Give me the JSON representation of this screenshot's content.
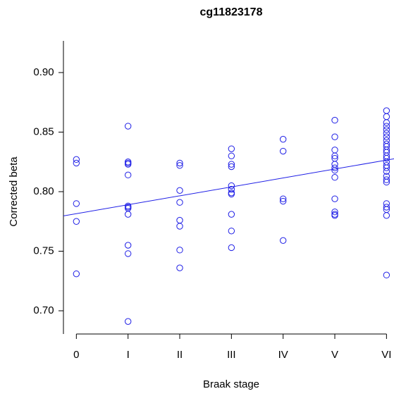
{
  "chart_data": {
    "type": "scatter",
    "title": "cg11823178",
    "x_label": "Braak stage",
    "y_label": "Corrected beta",
    "color": "#1f1fe6",
    "x": [
      0,
      0,
      0,
      0,
      0,
      1,
      1,
      1,
      1,
      1,
      1,
      1,
      1,
      1,
      1,
      1,
      1,
      2,
      2,
      2,
      2,
      2,
      2,
      2,
      2,
      3,
      3,
      3,
      3,
      3,
      3,
      3,
      3,
      3,
      3,
      3,
      4,
      4,
      4,
      4,
      4,
      5,
      5,
      5,
      5,
      5,
      5,
      5,
      5,
      5,
      5,
      5,
      5,
      5,
      6,
      6,
      6,
      6,
      6,
      6,
      6,
      6,
      6,
      6,
      6,
      6,
      6,
      6,
      6,
      6,
      6,
      6,
      6,
      6,
      6,
      6,
      6,
      6,
      6,
      6
    ],
    "y": [
      0.827,
      0.824,
      0.79,
      0.775,
      0.731,
      0.855,
      0.825,
      0.824,
      0.823,
      0.814,
      0.788,
      0.787,
      0.786,
      0.781,
      0.755,
      0.748,
      0.691,
      0.824,
      0.822,
      0.801,
      0.791,
      0.776,
      0.771,
      0.751,
      0.736,
      0.836,
      0.83,
      0.823,
      0.821,
      0.805,
      0.802,
      0.799,
      0.798,
      0.781,
      0.767,
      0.753,
      0.844,
      0.834,
      0.794,
      0.792,
      0.759,
      0.86,
      0.846,
      0.835,
      0.83,
      0.828,
      0.823,
      0.82,
      0.818,
      0.812,
      0.794,
      0.783,
      0.781,
      0.78,
      0.868,
      0.863,
      0.858,
      0.855,
      0.852,
      0.849,
      0.846,
      0.843,
      0.84,
      0.838,
      0.835,
      0.833,
      0.83,
      0.828,
      0.825,
      0.822,
      0.82,
      0.817,
      0.813,
      0.81,
      0.808,
      0.79,
      0.787,
      0.785,
      0.78,
      0.73
    ],
    "fit": {
      "intercept": 0.7815,
      "slope": 0.0075
    },
    "xlim": [
      -0.25,
      6.25
    ],
    "xticks": [
      0,
      {
        "value": 1,
        "label": "I"
      },
      {
        "value": 2,
        "label": "II"
      },
      {
        "value": 3,
        "label": "III"
      },
      {
        "value": 4,
        "label": "IV"
      },
      {
        "value": 5,
        "label": "V"
      },
      {
        "value": 6,
        "label": "VI"
      }
    ],
    "ylim": [
      0.6805,
      0.9266
    ],
    "yticks": [
      {
        "value": 0.7,
        "label": "0.70"
      },
      0.75,
      {
        "value": 0.8,
        "label": "0.80"
      },
      0.85,
      {
        "value": 0.9,
        "label": "0.90"
      }
    ],
    "grid": false
  }
}
